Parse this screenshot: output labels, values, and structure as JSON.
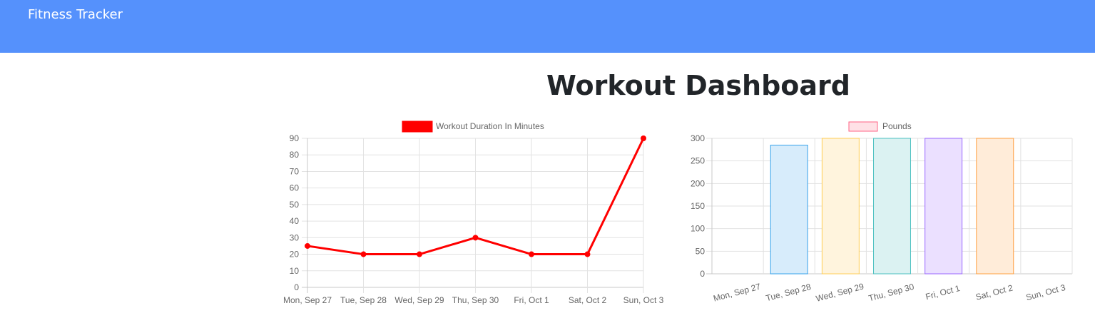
{
  "navbar": {
    "brand": "Fitness Tracker",
    "background": "#5591fc"
  },
  "page": {
    "title": "Workout Dashboard"
  },
  "chart_data": [
    {
      "type": "line",
      "legend": "top",
      "grid": true,
      "categories": [
        "Mon, Sep 27",
        "Tue, Sep 28",
        "Wed, Sep 29",
        "Thu, Sep 30",
        "Fri, Oct 1",
        "Sat, Oct 2",
        "Sun, Oct 3"
      ],
      "series": [
        {
          "name": "Workout Duration In Minutes",
          "values": [
            25,
            20,
            20,
            30,
            20,
            20,
            90
          ],
          "color": "#ff0000"
        }
      ],
      "y_ticks": [
        0,
        10,
        20,
        30,
        40,
        50,
        60,
        70,
        80,
        90
      ],
      "ylim": [
        0,
        90
      ]
    },
    {
      "type": "bar",
      "legend": "top",
      "grid": true,
      "categories": [
        "Mon, Sep 27",
        "Tue, Sep 28",
        "Wed, Sep 29",
        "Thu, Sep 30",
        "Fri, Oct 1",
        "Sat, Oct 2",
        "Sun, Oct 3"
      ],
      "series": [
        {
          "name": "Pounds",
          "values": [
            0,
            285,
            300,
            300,
            300,
            300,
            0
          ],
          "legend_fill": "#ffe1e6",
          "legend_stroke": "#ff6384",
          "bar_fills": [
            "#ffe1e6",
            "#d7ecfb",
            "#fff4dd",
            "#dbf2f2",
            "#ebe0ff",
            "#ffecd9",
            "#f4f5f5"
          ],
          "bar_strokes": [
            "#ff6384",
            "#36a2eb",
            "#ffce56",
            "#4bc0c0",
            "#9966ff",
            "#ff9f40",
            "#c9cbcf"
          ]
        }
      ],
      "y_ticks": [
        0,
        50,
        100,
        150,
        200,
        250,
        300
      ],
      "ylim": [
        0,
        300
      ]
    }
  ]
}
